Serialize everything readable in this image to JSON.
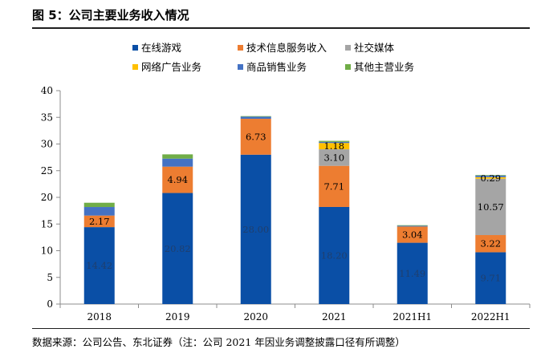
{
  "figure": {
    "title": "图 5：公司主要业务收入情况",
    "source": "数据来源：公司公告、东北证券（注：公司 2021 年因业务调整披露口径有所调整）"
  },
  "chart_data": {
    "type": "bar",
    "stacked": true,
    "categories": [
      "2018",
      "2019",
      "2020",
      "2021",
      "2021H1",
      "2022H1"
    ],
    "ylim": [
      0,
      40
    ],
    "yticks": [
      0,
      5,
      10,
      15,
      20,
      25,
      30,
      35,
      40
    ],
    "grid": false,
    "legend_position": "top",
    "series": [
      {
        "name": "在线游戏",
        "color": "#0a4fa6",
        "values": [
          14.42,
          20.82,
          28.0,
          18.2,
          11.49,
          9.71
        ],
        "labels": [
          "14.42",
          "20.82",
          "28.00",
          "18.20",
          "11.49",
          "9.71"
        ],
        "label_color": "#1f3f6e"
      },
      {
        "name": "技术信息服务收入",
        "color": "#ed7d31",
        "values": [
          2.17,
          4.94,
          6.73,
          7.71,
          3.04,
          3.22
        ],
        "labels": [
          "2.17",
          "4.94",
          "6.73",
          "7.71",
          "3.04",
          "3.22"
        ],
        "label_color": "#000000"
      },
      {
        "name": "社交媒体",
        "color": "#a5a5a5",
        "values": [
          0,
          0,
          0,
          3.1,
          0,
          10.57
        ],
        "labels": [
          "",
          "",
          "",
          "3.10",
          "",
          "10.57"
        ],
        "label_color": "#000000"
      },
      {
        "name": "网络广告业务",
        "color": "#ffc000",
        "values": [
          0,
          0,
          0,
          1.18,
          0,
          0.29
        ],
        "labels": [
          "",
          "",
          "",
          "1.18",
          "",
          "0.29"
        ],
        "label_color": "#000000"
      },
      {
        "name": "商品销售业务",
        "color": "#4472c4",
        "values": [
          1.6,
          1.5,
          0.4,
          0.2,
          0.15,
          0.3
        ],
        "labels": [
          "",
          "",
          "",
          "",
          "",
          ""
        ],
        "label_color": "#000000"
      },
      {
        "name": "其他主营业务",
        "color": "#70ad47",
        "values": [
          0.8,
          0.8,
          0.1,
          0.2,
          0.1,
          0.1
        ],
        "labels": [
          "",
          "",
          "",
          "",
          "",
          ""
        ],
        "label_color": "#000000"
      }
    ]
  }
}
